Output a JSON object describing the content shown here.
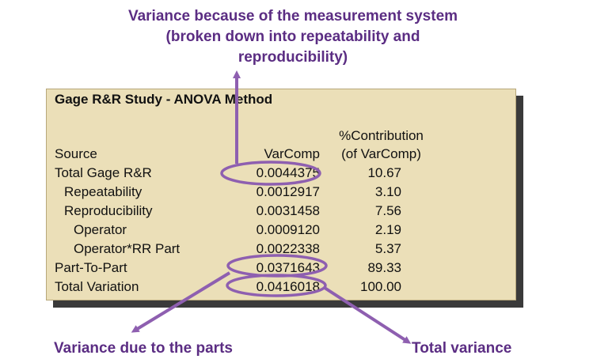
{
  "callouts": {
    "measurement_system": "Variance because of the measurement system (broken down into repeatability and reproducibility)",
    "measurement_system_line1": "Variance because of the measurement system",
    "measurement_system_line2": "(broken down into repeatability and",
    "measurement_system_line3": "reproducibility)",
    "parts": "Variance due to the parts",
    "total": "Total variance"
  },
  "table": {
    "title": "Gage R&R Study - ANOVA Method",
    "headers": {
      "source": "Source",
      "varcomp": "VarComp",
      "contrib_line1": "%Contribution",
      "contrib_line2": "(of VarComp)"
    },
    "rows": [
      {
        "source": "Total Gage R&R",
        "varcomp": "0.0044375",
        "contrib": "10.67",
        "indent": 0
      },
      {
        "source": "Repeatability",
        "varcomp": "0.0012917",
        "contrib": "3.10",
        "indent": 1
      },
      {
        "source": "Reproducibility",
        "varcomp": "0.0031458",
        "contrib": "7.56",
        "indent": 1
      },
      {
        "source": "Operator",
        "varcomp": "0.0009120",
        "contrib": "2.19",
        "indent": 2
      },
      {
        "source": "Operator*RR Part",
        "varcomp": "0.0022338",
        "contrib": "5.37",
        "indent": 2
      },
      {
        "source": "Part-To-Part",
        "varcomp": "0.0371643",
        "contrib": "89.33",
        "indent": 0
      },
      {
        "source": "Total Variation",
        "varcomp": "0.0416018",
        "contrib": "100.00",
        "indent": 0
      }
    ]
  },
  "colors": {
    "annotation": "#8e5fb0",
    "callout_text": "#5b2d83",
    "panel_fill": "#ebdfb8"
  }
}
